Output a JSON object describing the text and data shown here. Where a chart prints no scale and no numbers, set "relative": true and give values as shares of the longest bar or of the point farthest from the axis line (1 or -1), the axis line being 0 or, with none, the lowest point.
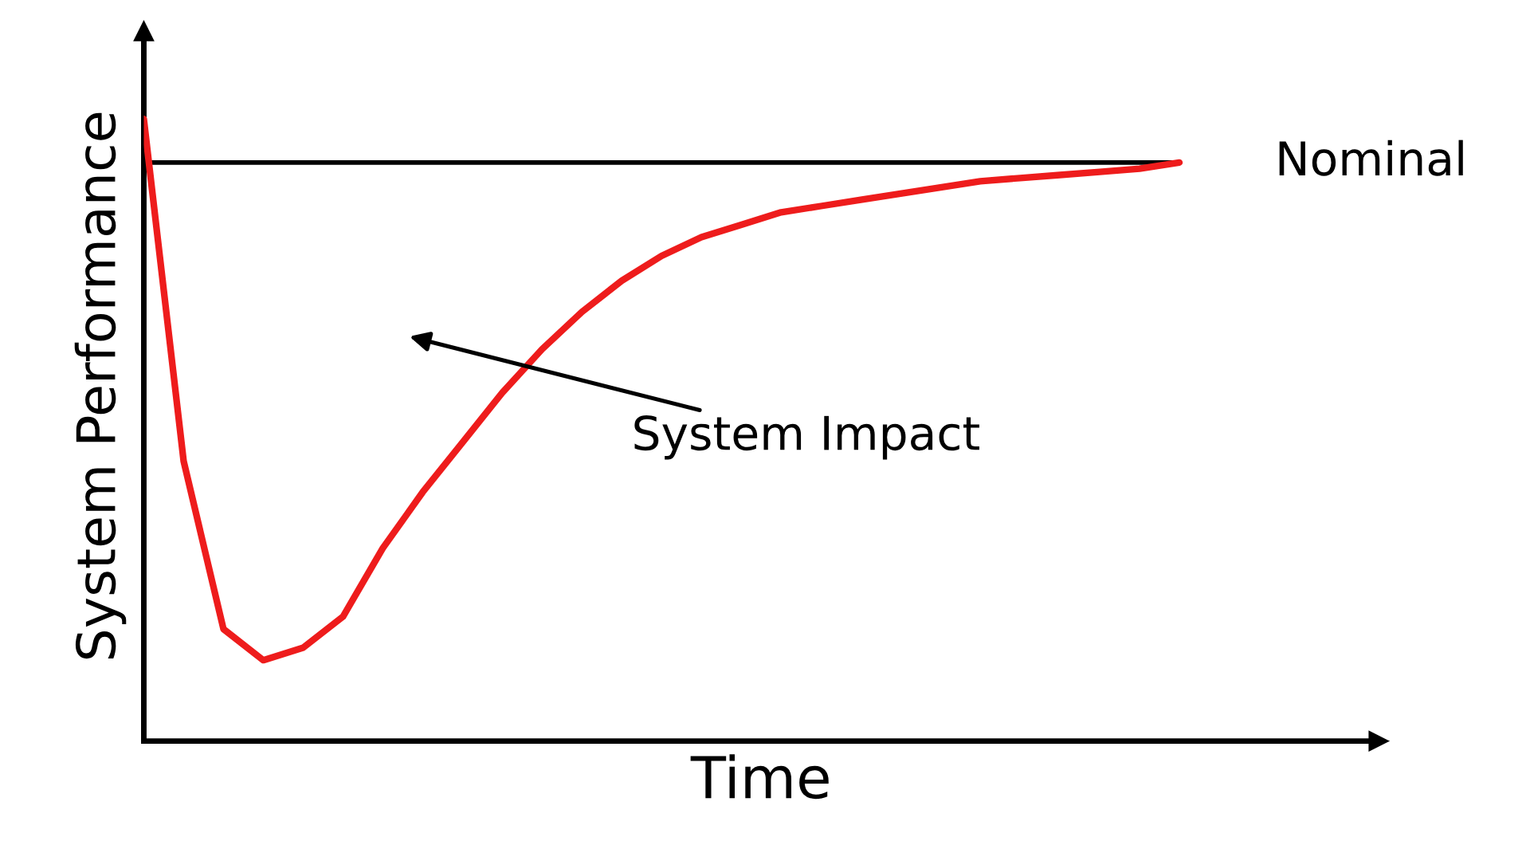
{
  "chart_data": {
    "type": "line",
    "relative": true,
    "xlabel": "Time",
    "ylabel": "System Performance",
    "categories": [
      null,
      null,
      null,
      null,
      null,
      null,
      null,
      null,
      null,
      null,
      null,
      null,
      null,
      null,
      null,
      null,
      null,
      null,
      null,
      null,
      null,
      null,
      null,
      null,
      null,
      null,
      null
    ],
    "series": [
      {
        "color": "#ee1c1c",
        "values": [
          1.0,
          0.45,
          0.18,
          0.13,
          0.15,
          0.2,
          0.31,
          0.4,
          0.48,
          0.56,
          0.63,
          0.69,
          0.74,
          0.78,
          0.81,
          0.83,
          0.85,
          0.86,
          0.87,
          0.88,
          0.89,
          0.9,
          0.905,
          0.91,
          0.915,
          0.92,
          0.93
        ]
      }
    ],
    "ref_lines": [
      {
        "axis": "y",
        "value": 0.93,
        "label": "Nominal",
        "color": "#000000"
      }
    ],
    "annotations": [
      "System Impact"
    ],
    "legend": false,
    "tick_labels": false
  }
}
